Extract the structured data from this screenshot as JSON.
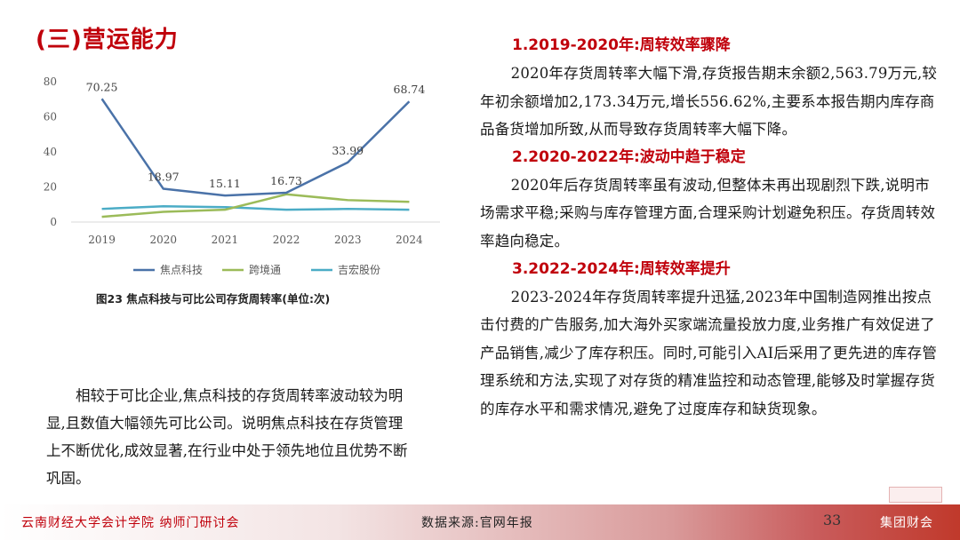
{
  "section_title": "(三)营运能力",
  "chart_data": {
    "type": "line",
    "categories": [
      "2019",
      "2020",
      "2021",
      "2022",
      "2023",
      "2024"
    ],
    "ylim": [
      0,
      80
    ],
    "yticks": [
      0,
      20,
      40,
      60,
      80
    ],
    "grid": false,
    "legend_position": "bottom",
    "series": [
      {
        "name": "焦点科技",
        "color": "#4a72a8",
        "values": [
          70.25,
          18.97,
          15.11,
          16.73,
          33.99,
          68.74
        ],
        "labels": [
          "70.25",
          "18.97",
          "15.11",
          "16.73",
          "33.99",
          "68.74"
        ]
      },
      {
        "name": "跨境通",
        "color": "#9bbb59",
        "values": [
          3.0,
          5.8,
          7.0,
          15.8,
          12.5,
          11.5
        ]
      },
      {
        "name": "吉宏股份",
        "color": "#4bacc6",
        "values": [
          7.5,
          9.0,
          8.5,
          7.0,
          7.5,
          7.0
        ]
      }
    ]
  },
  "figure_caption": "图23 焦点科技与可比公司存货周转率(单位:次)",
  "left_paragraph": "相较于可比企业,焦点科技的存货周转率波动较为明显,且数值大幅领先可比公司。说明焦点科技在存货管理上不断优化,成效显著,在行业中处于领先地位且优势不断巩固。",
  "sections": [
    {
      "heading": "1.2019-2020年:周转效率骤降",
      "text": "2020年存货周转率大幅下滑,存货报告期末余额2,563.79万元,较年初余额增加2,173.34万元,增长556.62%,主要系本报告期内库存商品备货增加所致,从而导致存货周转率大幅下降。"
    },
    {
      "heading": "2.2020-2022年:波动中趋于稳定",
      "text": "2020年后存货周转率虽有波动,但整体未再出现剧烈下跌,说明市场需求平稳;采购与库存管理方面,合理采购计划避免积压。存货周转效率趋向稳定。"
    },
    {
      "heading": "3.2022-2024年:周转效率提升",
      "text": "2023-2024年存货周转率提升迅猛,2023年中国制造网推出按点击付费的广告服务,加大海外买家端流量投放力度,业务推广有效促进了产品销售,减少了库存积压。同时,可能引入AI后采用了更先进的库存管理系统和方法,实现了对存货的精准监控和动态管理,能够及时掌握存货的库存水平和需求情况,避免了过度库存和缺货现象。"
    }
  ],
  "footer": {
    "org": "云南财经大学会计学院 纳师门研讨会",
    "source": "数据来源:官网年报",
    "page": "33",
    "brand": "集团财会"
  }
}
